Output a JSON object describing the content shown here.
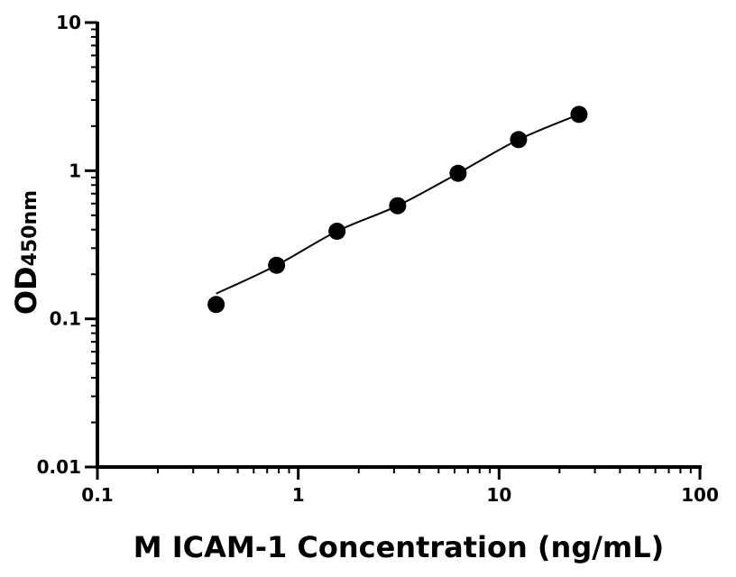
{
  "chart_data": {
    "type": "scatter",
    "title": "",
    "xlabel": "M ICAM-1 Concentration (ng/mL)",
    "ylabel_main": "OD",
    "ylabel_sub": "450nm",
    "x_scale": "log",
    "y_scale": "log",
    "xlim": [
      0.1,
      100
    ],
    "ylim": [
      0.01,
      10
    ],
    "x_ticks": [
      {
        "value": 0.1,
        "label": "0.1"
      },
      {
        "value": 1,
        "label": "1"
      },
      {
        "value": 10,
        "label": "10"
      },
      {
        "value": 100,
        "label": "100"
      }
    ],
    "y_ticks": [
      {
        "value": 0.01,
        "label": "0.01"
      },
      {
        "value": 0.1,
        "label": "0.1"
      },
      {
        "value": 1,
        "label": "1"
      },
      {
        "value": 10,
        "label": "10"
      }
    ],
    "grid": false,
    "legend": "none",
    "series": [
      {
        "x": [
          0.39,
          0.78,
          1.56,
          3.125,
          6.25,
          12.5,
          25
        ],
        "y": [
          0.125,
          0.23,
          0.39,
          0.58,
          0.96,
          1.62,
          2.4
        ],
        "marker": "circle",
        "color": "#000000",
        "fit_line": true
      }
    ]
  }
}
